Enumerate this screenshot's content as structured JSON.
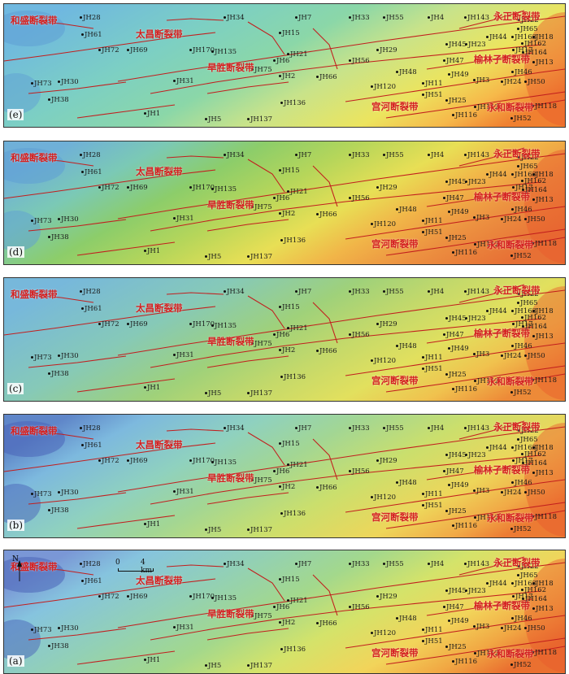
{
  "panels": [
    {
      "label": "(e)",
      "style": "e"
    },
    {
      "label": "(d)",
      "style": "d"
    },
    {
      "label": "(c)",
      "style": "c"
    },
    {
      "label": "(b)",
      "style": "b"
    },
    {
      "label": "(a)",
      "style": "a"
    }
  ],
  "wells": [
    "JH28",
    "JH61",
    "JH72",
    "JH69",
    "JH34",
    "JH170",
    "JH135",
    "JH15",
    "JH7",
    "JH33",
    "JH55",
    "JH4",
    "JH143",
    "JH22",
    "JH65",
    "JH18",
    "JH44",
    "JH163",
    "JH162",
    "JH23",
    "JH17",
    "JH164",
    "JH45",
    "JH29",
    "JH56",
    "JH21",
    "JH6",
    "JH75",
    "JH2",
    "JH66",
    "JH47",
    "JH48",
    "JH49",
    "JH13",
    "JH46",
    "JH3",
    "JH24",
    "JH50",
    "JH120",
    "JH11",
    "JH51",
    "JH25",
    "JH112",
    "JH116",
    "JH118",
    "JH52",
    "JH136",
    "JH137",
    "JH5",
    "JH1",
    "JH31",
    "JH30",
    "JH73",
    "JH38"
  ],
  "faults": {
    "hesheng": "和盛断裂带",
    "taichang": "太昌断裂带",
    "hansheng": "旱胜断裂带",
    "yuzheng": "永正断裂带",
    "yulinzi": "榆林子断裂带",
    "gonghe": "宫河断裂带",
    "yonghe": "永和断裂带"
  },
  "scale": {
    "zero": "0",
    "length": "4 km"
  },
  "north": "N"
}
